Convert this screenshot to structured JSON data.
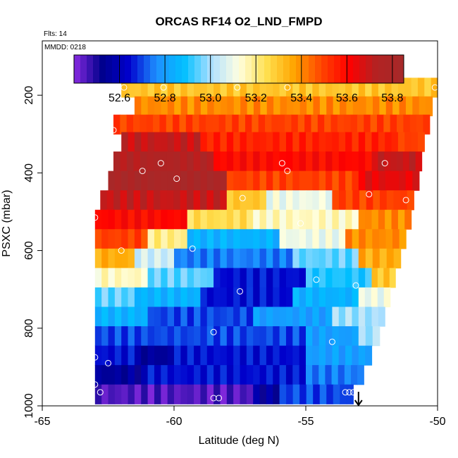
{
  "chart_data": {
    "type": "heatmap",
    "title": "ORCAS RF14 O2_LND_FMPD",
    "flights_note": "Flts: 14",
    "date_note": "MMDD: 0218",
    "xlabel": "Latitude (deg N)",
    "ylabel": "PSXC (mbar)",
    "xlim": [
      -65,
      -50
    ],
    "ylim": [
      1000,
      60
    ],
    "x_ticks": [
      -65,
      -60,
      -55,
      -50
    ],
    "x_tick_labels": [
      "-65",
      "-60",
      "-55",
      "-50"
    ],
    "y_ticks": [
      200,
      400,
      600,
      800,
      1000
    ],
    "y_tick_labels": [
      "200",
      "400",
      "600",
      "800",
      "1000"
    ],
    "colorbar": {
      "range": [
        52.4,
        53.85
      ],
      "ticks": [
        52.6,
        52.8,
        53.0,
        53.2,
        53.4,
        53.6,
        53.8
      ],
      "tick_labels": [
        "52.6",
        "52.8",
        "53.0",
        "53.2",
        "53.4",
        "53.6",
        "53.8"
      ],
      "colors": [
        "#8a2be2",
        "#00008b",
        "#0000cd",
        "#1e90ff",
        "#00bfff",
        "#b0e0ff",
        "#ffffe0",
        "#ffe050",
        "#ffa500",
        "#ff4500",
        "#ff0000",
        "#b22222",
        "#a52a2a"
      ]
    },
    "bands": [
      {
        "p": 180,
        "lat_start": -62.0,
        "lat_end": -50.0,
        "segments": [
          {
            "from": -62.0,
            "to": -50.0,
            "value": 53.3
          }
        ]
      },
      {
        "p": 228,
        "lat_start": -61.5,
        "lat_end": -50.2,
        "segments": [
          {
            "from": -61.5,
            "to": -50.2,
            "value": 53.4
          }
        ]
      },
      {
        "p": 275,
        "lat_start": -62.3,
        "lat_end": -50.3,
        "segments": [
          {
            "from": -62.3,
            "to": -50.3,
            "value": 53.5
          }
        ]
      },
      {
        "p": 320,
        "lat_start": -62.0,
        "lat_end": -50.5,
        "segments": [
          {
            "from": -62.0,
            "to": -59.0,
            "value": 53.7
          },
          {
            "from": -59.0,
            "to": -51.5,
            "value": 53.55
          },
          {
            "from": -51.5,
            "to": -50.5,
            "value": 53.5
          }
        ]
      },
      {
        "p": 370,
        "lat_start": -62.3,
        "lat_end": -50.6,
        "segments": [
          {
            "from": -62.3,
            "to": -58.5,
            "value": 53.75
          },
          {
            "from": -58.5,
            "to": -52.5,
            "value": 53.6
          },
          {
            "from": -52.5,
            "to": -50.6,
            "value": 53.7
          }
        ]
      },
      {
        "p": 420,
        "lat_start": -62.5,
        "lat_end": -50.7,
        "segments": [
          {
            "from": -62.5,
            "to": -58.0,
            "value": 53.8
          },
          {
            "from": -58.0,
            "to": -53.0,
            "value": 53.5
          },
          {
            "from": -53.0,
            "to": -50.7,
            "value": 53.65
          }
        ]
      },
      {
        "p": 470,
        "lat_start": -62.8,
        "lat_end": -50.9,
        "segments": [
          {
            "from": -62.8,
            "to": -58.0,
            "value": 53.7
          },
          {
            "from": -58.0,
            "to": -56.5,
            "value": 53.3
          },
          {
            "from": -56.5,
            "to": -54.0,
            "value": 53.1
          },
          {
            "from": -54.0,
            "to": -50.9,
            "value": 53.5
          }
        ]
      },
      {
        "p": 520,
        "lat_start": -63.0,
        "lat_end": -51.0,
        "segments": [
          {
            "from": -63.0,
            "to": -59.5,
            "value": 53.6
          },
          {
            "from": -59.5,
            "to": -57.0,
            "value": 53.25
          },
          {
            "from": -57.0,
            "to": -53.0,
            "value": 53.15
          },
          {
            "from": -53.0,
            "to": -51.0,
            "value": 53.4
          }
        ]
      },
      {
        "p": 570,
        "lat_start": -63.0,
        "lat_end": -51.2,
        "segments": [
          {
            "from": -63.0,
            "to": -61.0,
            "value": 53.5
          },
          {
            "from": -61.0,
            "to": -59.5,
            "value": 53.2
          },
          {
            "from": -59.5,
            "to": -56.0,
            "value": 52.85
          },
          {
            "from": -56.0,
            "to": -53.5,
            "value": 53.1
          },
          {
            "from": -53.5,
            "to": -51.2,
            "value": 53.4
          }
        ]
      },
      {
        "p": 620,
        "lat_start": -63.0,
        "lat_end": -51.4,
        "segments": [
          {
            "from": -63.0,
            "to": -61.5,
            "value": 53.35
          },
          {
            "from": -61.5,
            "to": -60.0,
            "value": 53.05
          },
          {
            "from": -60.0,
            "to": -55.5,
            "value": 52.75
          },
          {
            "from": -55.5,
            "to": -53.0,
            "value": 52.95
          },
          {
            "from": -53.0,
            "to": -51.4,
            "value": 53.35
          }
        ]
      },
      {
        "p": 670,
        "lat_start": -63.0,
        "lat_end": -51.6,
        "segments": [
          {
            "from": -63.0,
            "to": -61.0,
            "value": 53.15
          },
          {
            "from": -61.0,
            "to": -58.5,
            "value": 52.95
          },
          {
            "from": -58.5,
            "to": -55.0,
            "value": 52.65
          },
          {
            "from": -55.0,
            "to": -52.5,
            "value": 52.9
          },
          {
            "from": -52.5,
            "to": -51.6,
            "value": 53.3
          }
        ]
      },
      {
        "p": 720,
        "lat_start": -63.0,
        "lat_end": -51.8,
        "segments": [
          {
            "from": -63.0,
            "to": -61.5,
            "value": 52.95
          },
          {
            "from": -61.5,
            "to": -59.0,
            "value": 52.85
          },
          {
            "from": -59.0,
            "to": -55.5,
            "value": 52.65
          },
          {
            "from": -55.5,
            "to": -53.0,
            "value": 52.85
          },
          {
            "from": -53.0,
            "to": -51.8,
            "value": 53.1
          }
        ]
      },
      {
        "p": 770,
        "lat_start": -63.0,
        "lat_end": -52.0,
        "segments": [
          {
            "from": -63.0,
            "to": -61.0,
            "value": 52.85
          },
          {
            "from": -61.0,
            "to": -57.0,
            "value": 52.7
          },
          {
            "from": -57.0,
            "to": -54.0,
            "value": 52.8
          },
          {
            "from": -54.0,
            "to": -52.0,
            "value": 53.0
          }
        ]
      },
      {
        "p": 820,
        "lat_start": -63.0,
        "lat_end": -52.2,
        "segments": [
          {
            "from": -63.0,
            "to": -60.0,
            "value": 52.7
          },
          {
            "from": -60.0,
            "to": -55.0,
            "value": 52.7
          },
          {
            "from": -55.0,
            "to": -53.0,
            "value": 52.8
          },
          {
            "from": -53.0,
            "to": -52.2,
            "value": 53.0
          }
        ]
      },
      {
        "p": 870,
        "lat_start": -63.0,
        "lat_end": -52.5,
        "segments": [
          {
            "from": -63.0,
            "to": -61.5,
            "value": 52.65
          },
          {
            "from": -61.5,
            "to": -60.0,
            "value": 52.55
          },
          {
            "from": -60.0,
            "to": -55.0,
            "value": 52.65
          },
          {
            "from": -55.0,
            "to": -52.5,
            "value": 52.8
          }
        ]
      },
      {
        "p": 920,
        "lat_start": -63.0,
        "lat_end": -52.8,
        "segments": [
          {
            "from": -63.0,
            "to": -61.0,
            "value": 52.55
          },
          {
            "from": -61.0,
            "to": -55.0,
            "value": 52.65
          },
          {
            "from": -55.0,
            "to": -52.8,
            "value": 52.75
          }
        ]
      },
      {
        "p": 970,
        "lat_start": -63.0,
        "lat_end": -53.2,
        "segments": [
          {
            "from": -63.0,
            "to": -57.0,
            "value": 52.45
          },
          {
            "from": -57.0,
            "to": -56.0,
            "value": 52.55
          },
          {
            "from": -56.0,
            "to": -53.2,
            "value": 52.7
          }
        ]
      }
    ],
    "obs_points": [
      {
        "lat": -61.9,
        "p": 180
      },
      {
        "lat": -60.4,
        "p": 180
      },
      {
        "lat": -57.6,
        "p": 180
      },
      {
        "lat": -55.7,
        "p": 180
      },
      {
        "lat": -50.1,
        "p": 180
      },
      {
        "lat": -62.3,
        "p": 290
      },
      {
        "lat": -50.1,
        "p": 290
      },
      {
        "lat": -61.2,
        "p": 395
      },
      {
        "lat": -60.5,
        "p": 375
      },
      {
        "lat": -55.9,
        "p": 375
      },
      {
        "lat": -55.7,
        "p": 395
      },
      {
        "lat": -59.9,
        "p": 415
      },
      {
        "lat": -52.0,
        "p": 375
      },
      {
        "lat": -52.6,
        "p": 455
      },
      {
        "lat": -57.4,
        "p": 465
      },
      {
        "lat": -51.2,
        "p": 470
      },
      {
        "lat": -63.0,
        "p": 515
      },
      {
        "lat": -55.2,
        "p": 530
      },
      {
        "lat": -62.0,
        "p": 600
      },
      {
        "lat": -59.3,
        "p": 595
      },
      {
        "lat": -50.6,
        "p": 620
      },
      {
        "lat": -54.6,
        "p": 675
      },
      {
        "lat": -53.1,
        "p": 690
      },
      {
        "lat": -57.5,
        "p": 705
      },
      {
        "lat": -58.5,
        "p": 810
      },
      {
        "lat": -54.0,
        "p": 835
      },
      {
        "lat": -63.0,
        "p": 875
      },
      {
        "lat": -62.5,
        "p": 890
      },
      {
        "lat": -63.0,
        "p": 945
      },
      {
        "lat": -62.8,
        "p": 965
      },
      {
        "lat": -58.5,
        "p": 980
      },
      {
        "lat": -58.3,
        "p": 980
      },
      {
        "lat": -53.5,
        "p": 965
      },
      {
        "lat": -53.35,
        "p": 965
      },
      {
        "lat": -53.2,
        "p": 965
      }
    ],
    "arrow_marker": {
      "lat": -53.0,
      "p": 1000
    }
  }
}
